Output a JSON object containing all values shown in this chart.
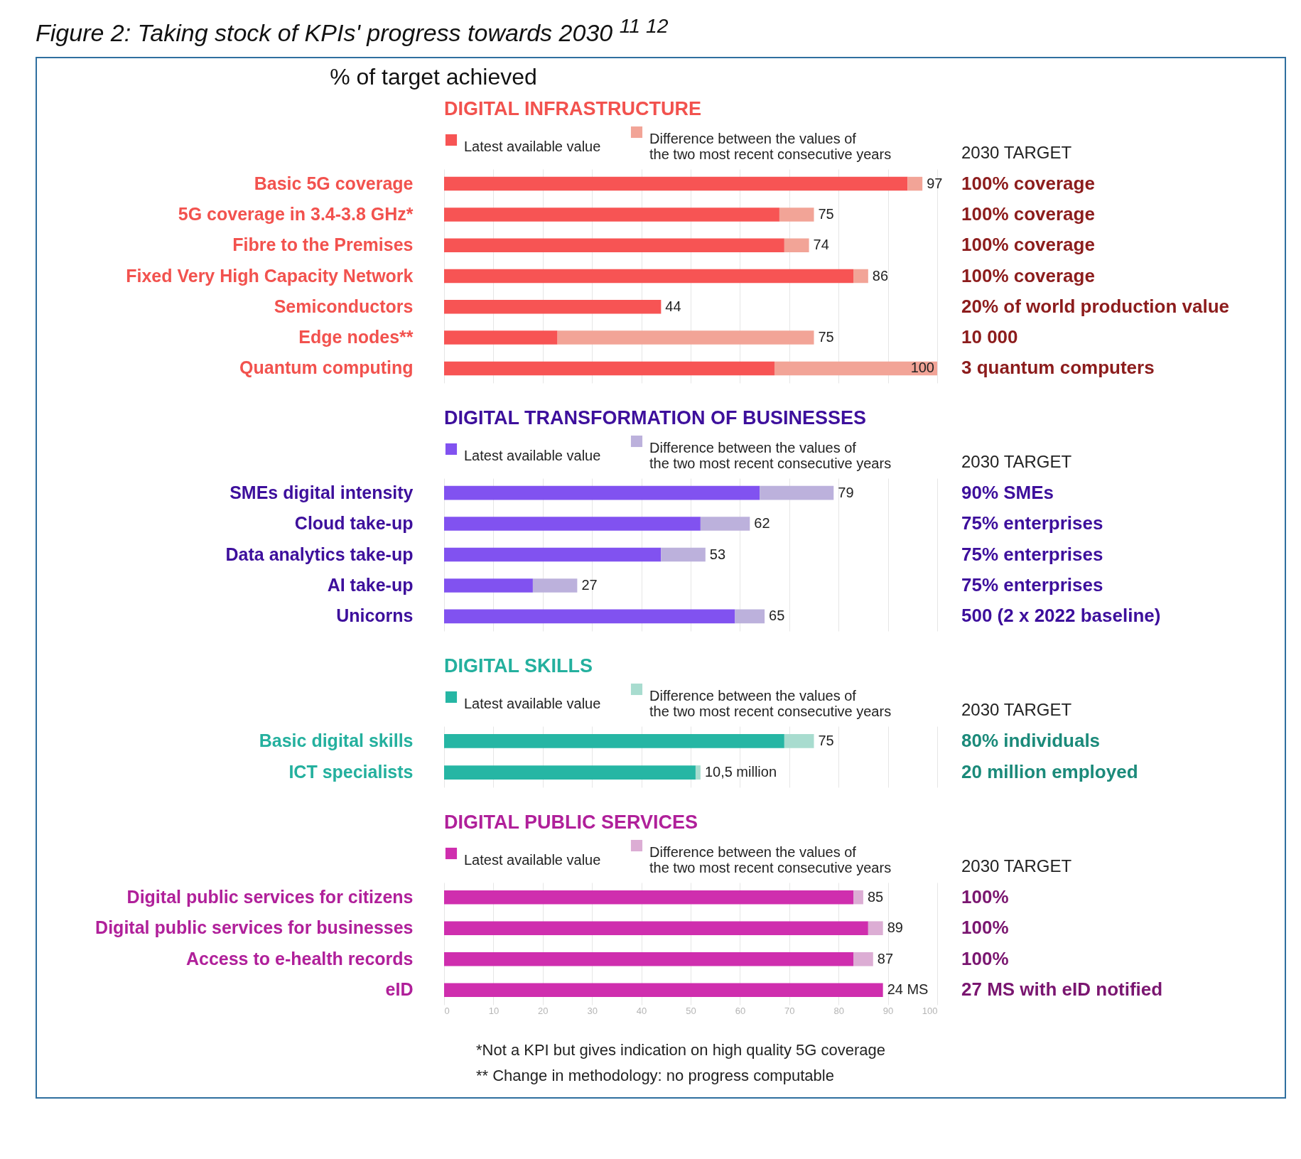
{
  "chart_data": [
    {
      "type": "other",
      "title": "Figure 2: Taking stock of KPIs' progress towards 2030 $^{11 12}$",
      "subtitle": "% of target achieved"
    },
    {
      "type": "bar",
      "orientation": "horizontal",
      "stacked": true,
      "title": "DIGITAL INFRASTRUCTURE",
      "categories": [
        "Basic 5G coverage",
        "5G coverage in 3.4-3.8 GHz*",
        "Fibre to the Premises",
        "Fixed Very High Capacity Network",
        "Semiconductors",
        "Edge nodes**",
        "Quantum computing"
      ],
      "series": [
        {
          "name": "Latest available value",
          "color": "#f75454",
          "values": [
            94,
            68,
            69,
            83,
            44,
            23,
            67
          ]
        },
        {
          "name": "Difference between the values of the two most recent consecutive years",
          "color": "#f2a497",
          "values": [
            3,
            7,
            5,
            3,
            null,
            52,
            33
          ]
        }
      ],
      "totals": [
        "97",
        "75",
        "74",
        "86",
        "44",
        "75",
        "100"
      ],
      "y2label": "2030 TARGET",
      "annotations": [
        "100% coverage",
        "100% coverage",
        "100% coverage",
        "100% coverage",
        "20% of world production value",
        "10 000",
        "3 quantum computers"
      ],
      "xlim": [
        0,
        100
      ],
      "xticks": [
        0,
        10,
        20,
        30,
        40,
        50,
        60,
        70,
        80,
        90,
        100
      ],
      "grid": "x",
      "legend": "top",
      "tick_labels": "y"
    },
    {
      "type": "bar",
      "orientation": "horizontal",
      "stacked": true,
      "title": "DIGITAL TRANSFORMATION OF BUSINESSES",
      "categories": [
        "SMEs digital intensity",
        "Cloud take-up",
        "Data analytics take-up",
        "AI take-up",
        "Unicorns"
      ],
      "series": [
        {
          "name": "Latest available value",
          "color": "#8152f0",
          "values": [
            64,
            52,
            44,
            18,
            59
          ]
        },
        {
          "name": "Difference between the values of the two most recent consecutive years",
          "color": "#bcb1dc",
          "values": [
            15,
            10,
            9,
            9,
            6
          ]
        }
      ],
      "totals": [
        "79",
        "62",
        "53",
        "27",
        "65"
      ],
      "y2label": "2030 TARGET",
      "annotations": [
        "90% SMEs",
        "75% enterprises",
        "75% enterprises",
        "75% enterprises",
        "500 (2 x 2022 baseline)"
      ],
      "xlim": [
        0,
        100
      ],
      "xticks": [
        0,
        10,
        20,
        30,
        40,
        50,
        60,
        70,
        80,
        90,
        100
      ],
      "grid": "x",
      "legend": "top",
      "tick_labels": "y"
    },
    {
      "type": "bar",
      "orientation": "horizontal",
      "stacked": true,
      "title": "DIGITAL SKILLS",
      "categories": [
        "Basic digital skills",
        "ICT specialists"
      ],
      "series": [
        {
          "name": "Latest available value",
          "color": "#26b6a4",
          "values": [
            69,
            51
          ]
        },
        {
          "name": "Difference between the values of the two most recent consecutive years",
          "color": "#a8dccf",
          "values": [
            6,
            1
          ]
        }
      ],
      "totals": [
        "75",
        null
      ],
      "y2label": "2030 TARGET",
      "annotations": [
        "80% individuals",
        "20 million employed",
        {
          "text": "10,5 million",
          "x": 52,
          "y": "ICT specialists"
        }
      ],
      "xlim": [
        0,
        100
      ],
      "xticks": [
        0,
        10,
        20,
        30,
        40,
        50,
        60,
        70,
        80,
        90,
        100
      ],
      "grid": "x",
      "legend": "top",
      "tick_labels": "y"
    },
    {
      "type": "bar",
      "orientation": "horizontal",
      "stacked": true,
      "title": "DIGITAL PUBLIC SERVICES",
      "categories": [
        "Digital public services for citizens",
        "Digital public services for businesses",
        "Access to e-health records",
        "eID"
      ],
      "series": [
        {
          "name": "Latest available value",
          "color": "#cf2eae",
          "values": [
            83,
            86,
            83,
            89
          ]
        },
        {
          "name": "Difference between the values of the two most recent consecutive years",
          "color": "#dcadd4",
          "values": [
            2,
            3,
            4,
            null
          ]
        }
      ],
      "totals": [
        "85",
        "89",
        "87",
        null
      ],
      "y2label": "2030 TARGET",
      "annotations": [
        "100%",
        "100%",
        "100%",
        "27 MS with eID notified",
        {
          "text": "24 MS",
          "x": 89,
          "y": "eID"
        }
      ],
      "xlim": [
        0,
        100
      ],
      "xticks": [
        0,
        10,
        20,
        30,
        40,
        50,
        60,
        70,
        80,
        90,
        100
      ],
      "grid": "x",
      "legend": "top"
    },
    {
      "type": "other",
      "annotations": [
        "*Not a KPI but gives indication on high quality 5G coverage",
        "** Change in methodology: no progress computable"
      ]
    }
  ]
}
